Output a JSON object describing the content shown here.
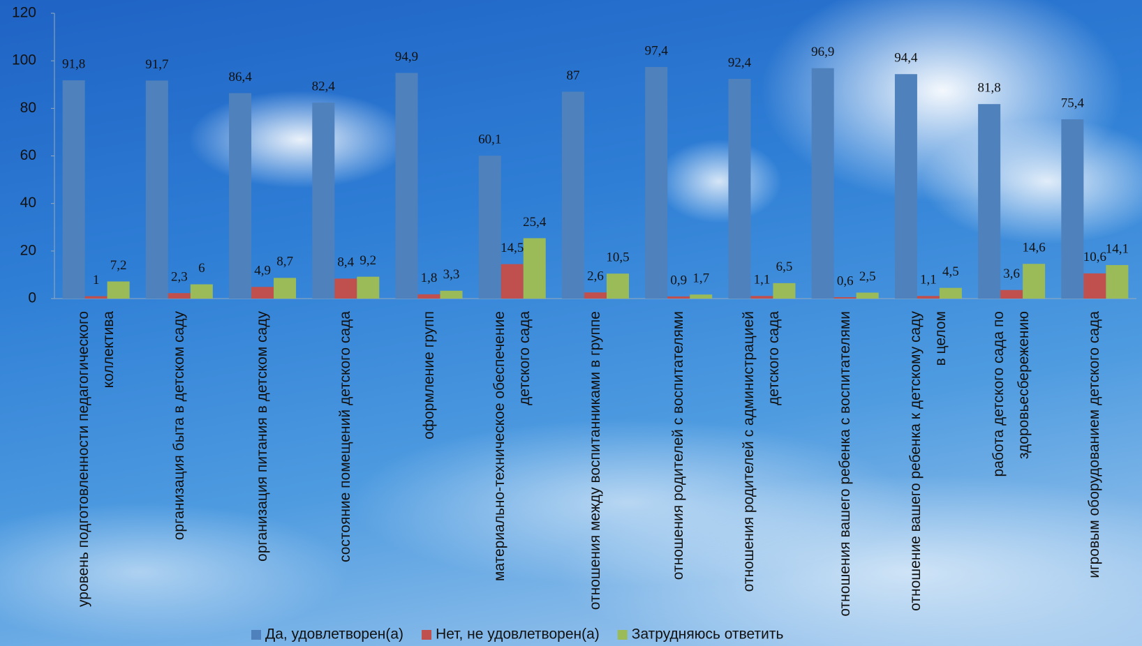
{
  "chart_data": {
    "type": "bar",
    "categories": [
      "уровень подготовленности педагогического коллектива",
      "организация быта в детском саду",
      "организация питания в детском саду",
      "состояние помещений детского сада",
      "оформление групп",
      "материально-техническое обеспечение детского сада",
      "отношения между воспитанниками в группе",
      "отношения родителей с воспитателями",
      "отношения родителей с администрацией детского сада",
      "отношения вашего ребенка с воспитателями",
      "отношение вашего ребенка к детскому саду в целом",
      "работа детского сада по здоровьесбережению",
      "игровым оборудованием детского сада"
    ],
    "series": [
      {
        "name": "Да, удовлетворен(а)",
        "color": "#4f81bd",
        "values": [
          91.8,
          91.7,
          86.4,
          82.4,
          94.9,
          60.1,
          87,
          97.4,
          92.4,
          96.9,
          94.4,
          81.8,
          75.4
        ],
        "value_labels": [
          "91,8",
          "91,7",
          "86,4",
          "82,4",
          "94,9",
          "60,1",
          "87",
          "97,4",
          "92,4",
          "96,9",
          "94,4",
          "81,8",
          "75,4"
        ]
      },
      {
        "name": "Нет, не удовлетворен(а)",
        "color": "#c0504d",
        "values": [
          1,
          2.3,
          4.9,
          8.4,
          1.8,
          14.5,
          2.6,
          0.9,
          1.1,
          0.6,
          1.1,
          3.6,
          10.6
        ],
        "value_labels": [
          "1",
          "2,3",
          "4,9",
          "8,4",
          "1,8",
          "14,5",
          "2,6",
          "0,9",
          "1,1",
          "0,6",
          "1,1",
          "3,6",
          "10,6"
        ]
      },
      {
        "name": "Затрудняюсь ответить",
        "color": "#9bbb59",
        "values": [
          7.2,
          6,
          8.7,
          9.2,
          3.3,
          25.4,
          10.5,
          1.7,
          6.5,
          2.5,
          4.5,
          14.6,
          14.1
        ],
        "value_labels": [
          "7,2",
          "6",
          "8,7",
          "9,2",
          "3,3",
          "25,4",
          "10,5",
          "1,7",
          "6,5",
          "2,5",
          "4,5",
          "14,6",
          "14,1"
        ]
      }
    ],
    "ylim": [
      0,
      120
    ],
    "yticks": [
      0,
      20,
      40,
      60,
      80,
      100,
      120
    ],
    "legend": "bottom"
  }
}
